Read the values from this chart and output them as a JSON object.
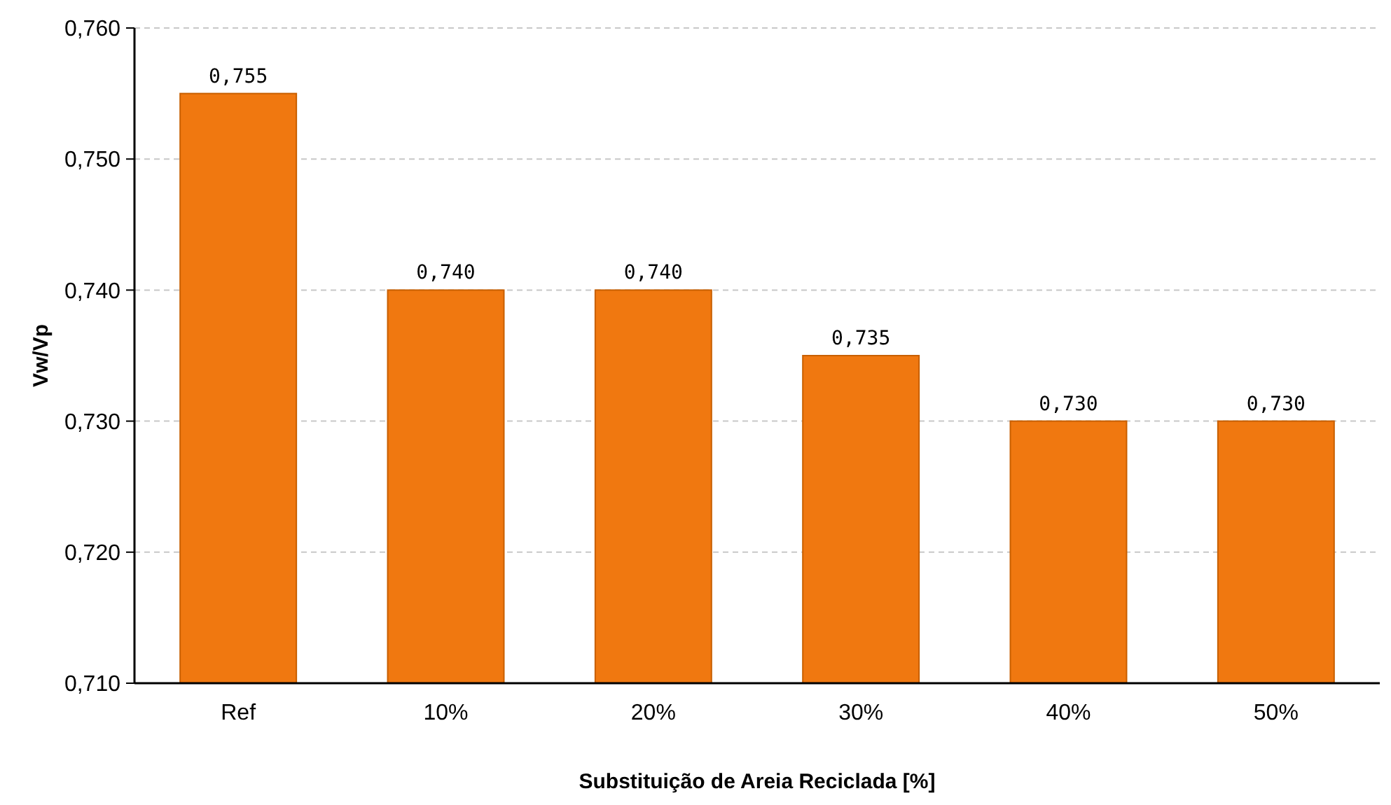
{
  "chart_data": {
    "type": "bar",
    "xlabel": "Substituição de Areia Reciclada [%]",
    "ylabel": "Vw/Vp",
    "categories": [
      "Ref",
      "10%",
      "20%",
      "30%",
      "40%",
      "50%"
    ],
    "values": [
      0.755,
      0.74,
      0.74,
      0.735,
      0.73,
      0.73
    ],
    "value_labels": [
      "0,755",
      "0,740",
      "0,740",
      "0,735",
      "0,730",
      "0,730"
    ],
    "color": "#f07810",
    "ylim": [
      0.71,
      0.76
    ],
    "yticks": [
      {
        "value": 0.71,
        "label": "0,710"
      },
      {
        "value": 0.72,
        "label": "0,720"
      },
      {
        "value": 0.73,
        "label": "0,730"
      },
      {
        "value": 0.74,
        "label": "0,740"
      },
      {
        "value": 0.75,
        "label": "0,750"
      },
      {
        "value": 0.76,
        "label": "0,760"
      }
    ],
    "grid": "y"
  }
}
